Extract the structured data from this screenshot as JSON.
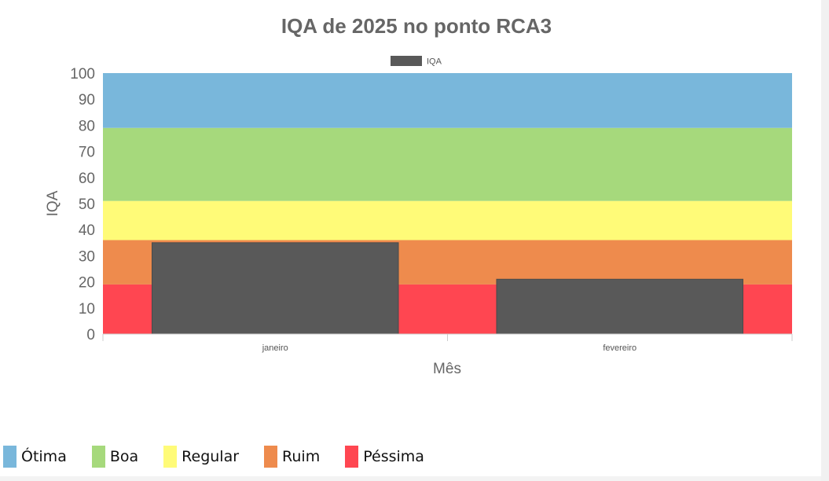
{
  "chart_data": {
    "type": "bar",
    "title": "IQA de 2025 no ponto RCA3",
    "xlabel": "Mês",
    "ylabel": "IQA",
    "ylim": [
      0,
      100
    ],
    "yticks": [
      0,
      10,
      20,
      30,
      40,
      50,
      60,
      70,
      80,
      90,
      100
    ],
    "categories": [
      "janeiro",
      "fevereiro"
    ],
    "series": [
      {
        "name": "IQA",
        "values": [
          35,
          21
        ],
        "color": "#595959"
      }
    ],
    "legend_placement": "top-center",
    "grid": false,
    "bands": [
      {
        "label": "Péssima",
        "from": 0,
        "to": 19,
        "color": "#ff4651"
      },
      {
        "label": "Ruim",
        "from": 19,
        "to": 36,
        "color": "#ee8b4d"
      },
      {
        "label": "Regular",
        "from": 36,
        "to": 51,
        "color": "#fffb78"
      },
      {
        "label": "Boa",
        "from": 51,
        "to": 79,
        "color": "#a6d97c"
      },
      {
        "label": "Ótima",
        "from": 79,
        "to": 100,
        "color": "#79b7db"
      }
    ]
  },
  "category_legend": [
    {
      "label": "Ótima",
      "color": "#79b7db"
    },
    {
      "label": "Boa",
      "color": "#a6d97c"
    },
    {
      "label": "Regular",
      "color": "#fffb78"
    },
    {
      "label": "Ruim",
      "color": "#ee8b4d"
    },
    {
      "label": "Péssima",
      "color": "#ff4651"
    }
  ]
}
